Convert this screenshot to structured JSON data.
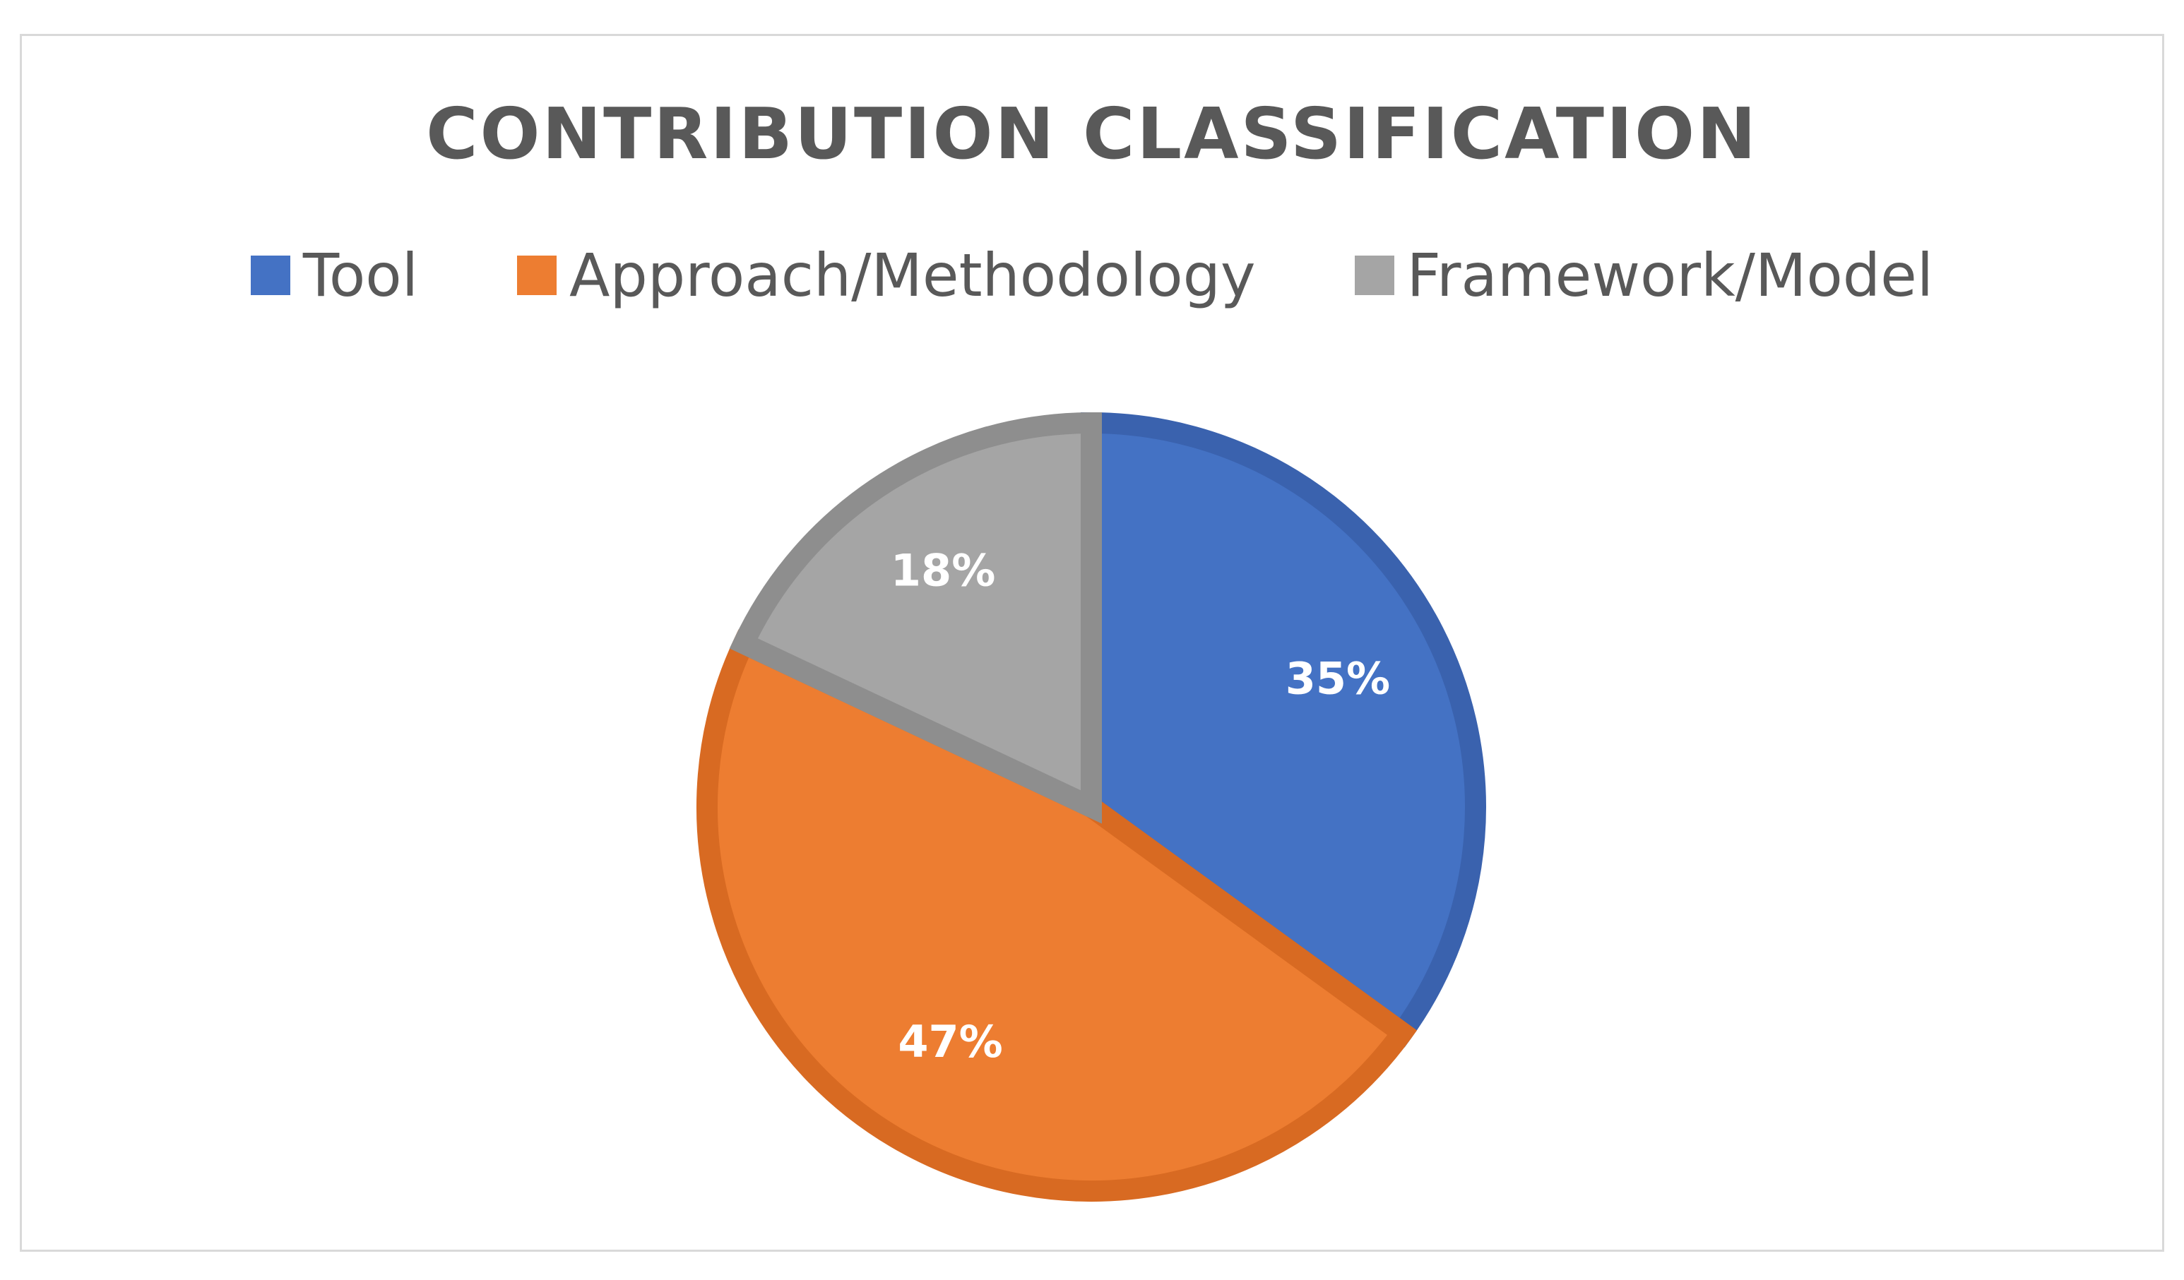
{
  "chart_data": {
    "type": "pie",
    "title": "CONTRIBUTION CLASSIFICATION",
    "legend_position": "top",
    "categories": [
      "Tool",
      "Approach/Methodology",
      "Framework/Model"
    ],
    "values": [
      35,
      47,
      18
    ],
    "labels": [
      "35%",
      "47%",
      "18%"
    ],
    "colors": [
      "#4472c4",
      "#ed7d31",
      "#a5a5a5"
    ],
    "border_colors": [
      "#3a62ae",
      "#d86a22",
      "#8e8e8e"
    ]
  }
}
